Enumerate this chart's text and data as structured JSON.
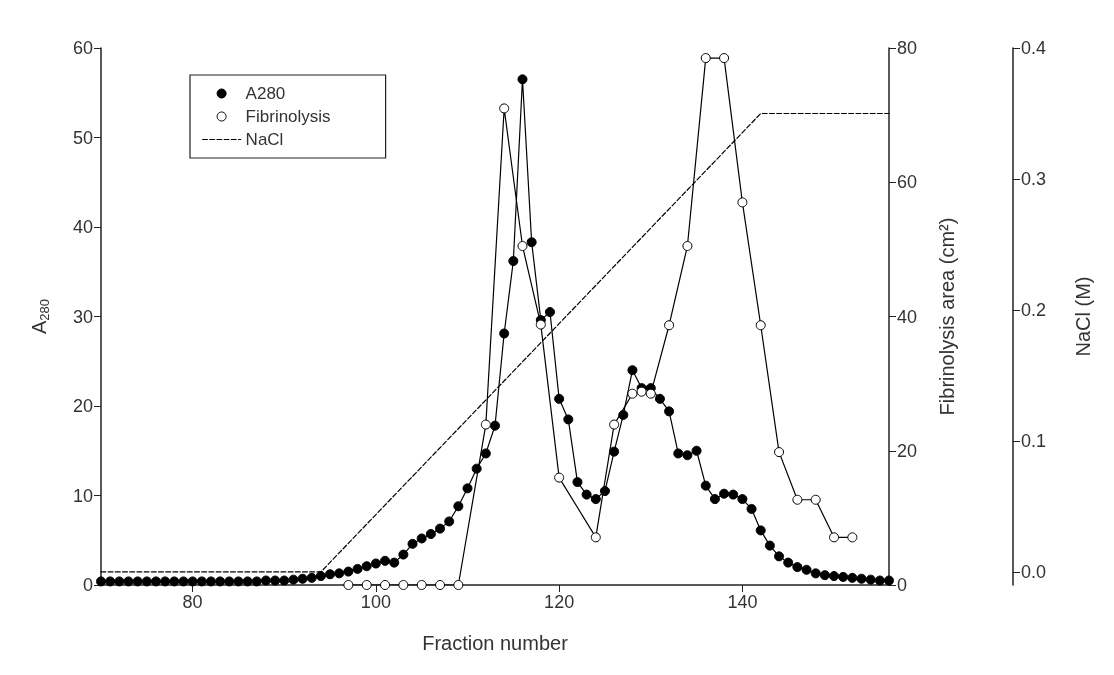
{
  "chart_data": {
    "type": "line",
    "xlabel": "Fraction number",
    "ylabel": "A$_{280}$",
    "y2label": "Fibrinolysis area (cm²)",
    "y3label": "NaCl (M)",
    "xlim": [
      70,
      156
    ],
    "xticks": [
      80,
      100,
      120,
      140
    ],
    "ylim": [
      0,
      60
    ],
    "yticks": [
      0,
      10,
      20,
      30,
      40,
      50,
      60
    ],
    "y2lim": [
      0,
      80
    ],
    "y2ticks": [
      0,
      20,
      40,
      60,
      80
    ],
    "y3lim": [
      -0.01,
      0.4
    ],
    "y3ticks": [
      {
        "value": 0,
        "label": "0.0"
      },
      {
        "value": 0.1,
        "label": "0.1"
      },
      {
        "value": 0.2,
        "label": "0.2"
      },
      {
        "value": 0.3,
        "label": "0.3"
      },
      {
        "value": 0.4,
        "label": "0.4"
      }
    ],
    "grid": false,
    "legend": "top left",
    "series": [
      {
        "name": "A280",
        "color": "#000000",
        "marker": "circle",
        "line_style": "solid",
        "x": [
          70,
          71,
          72,
          73,
          74,
          75,
          76,
          77,
          78,
          79,
          80,
          81,
          82,
          83,
          84,
          85,
          86,
          87,
          88,
          89,
          90,
          91,
          92,
          93,
          94,
          95,
          96,
          97,
          98,
          99,
          100,
          101,
          102,
          103,
          104,
          105,
          106,
          107,
          108,
          109,
          110,
          111,
          112,
          113,
          114,
          115,
          116,
          117,
          118,
          119,
          120,
          121,
          122,
          123,
          124,
          125,
          126,
          127,
          128,
          129,
          130,
          131,
          132,
          133,
          134,
          135,
          136,
          137,
          138,
          139,
          140,
          141,
          142,
          143,
          144,
          145,
          146,
          147,
          148,
          149,
          150,
          151,
          152,
          153,
          154,
          155,
          156
        ],
        "values": [
          0.4,
          0.4,
          0.4,
          0.4,
          0.4,
          0.4,
          0.4,
          0.4,
          0.4,
          0.4,
          0.4,
          0.4,
          0.4,
          0.4,
          0.4,
          0.4,
          0.4,
          0.4,
          0.5,
          0.5,
          0.5,
          0.6,
          0.7,
          0.8,
          1.0,
          1.2,
          1.3,
          1.5,
          1.8,
          2.1,
          2.4,
          2.7,
          2.5,
          3.4,
          4.6,
          5.2,
          5.7,
          6.3,
          7.1,
          8.8,
          10.8,
          13,
          14.7,
          17.8,
          28.1,
          36.2,
          56.5,
          38.3,
          29.6,
          30.5,
          20.8,
          18.5,
          11.5,
          10.1,
          9.6,
          10.5,
          14.9,
          19,
          24,
          22,
          22,
          20.8,
          19.4,
          14.7,
          14.5,
          15,
          11.1,
          9.6,
          10.2,
          10.1,
          9.6,
          8.5,
          6.1,
          4.4,
          3.2,
          2.5,
          2,
          1.7,
          1.3,
          1.1,
          1,
          0.9,
          0.8,
          0.7,
          0.6,
          0.5,
          0.5
        ]
      },
      {
        "name": "Fibrinolysis",
        "color": "#000000",
        "marker": "circle",
        "line_style": "solid",
        "axis": "y2",
        "x": [
          97,
          99,
          101,
          103,
          105,
          107,
          109,
          112,
          114,
          116,
          118,
          120,
          124,
          126,
          128,
          129,
          130,
          132,
          134,
          136,
          138,
          140,
          142,
          144,
          146,
          148,
          150,
          152
        ],
        "values": [
          0,
          0,
          0,
          0,
          0,
          0,
          0,
          23.9,
          71,
          50.5,
          38.8,
          16,
          7.1,
          23.9,
          28.5,
          28.8,
          28.5,
          38.7,
          50.5,
          78.5,
          78.5,
          57,
          38.7,
          19.8,
          12.7,
          12.7,
          7.1,
          7.1
        ]
      },
      {
        "name": "NaCl",
        "color": "#000000",
        "marker": "none",
        "line_style": "dashed",
        "axis": "y3",
        "x": [
          70,
          94,
          142,
          156
        ],
        "values": [
          0,
          0,
          0.35,
          0.35
        ]
      }
    ]
  }
}
